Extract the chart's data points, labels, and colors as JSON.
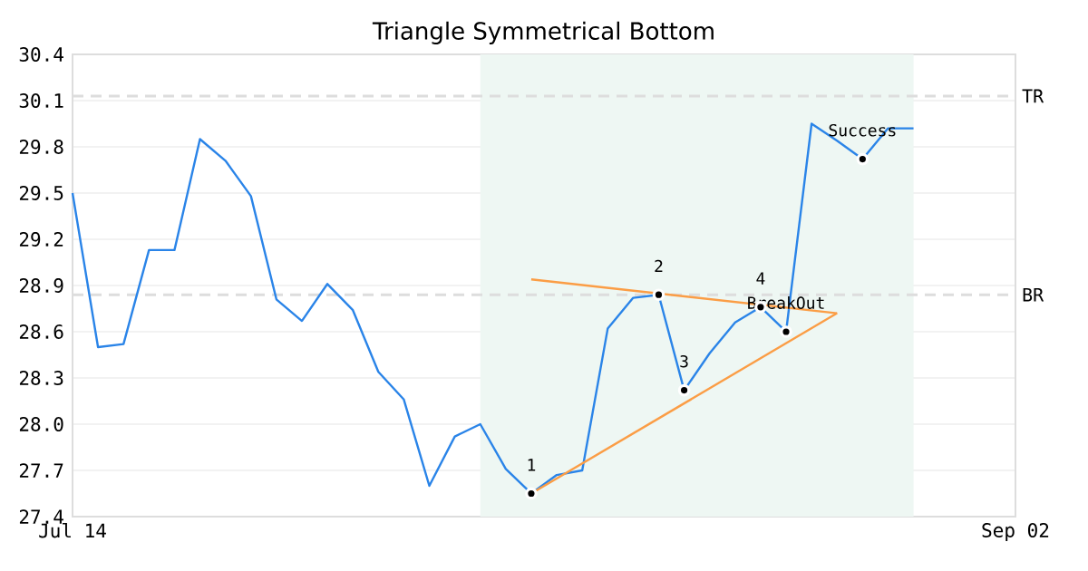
{
  "chart_data": {
    "type": "line",
    "title": "Triangle Symmetrical Bottom",
    "categories": [
      "Jul 14",
      null,
      null,
      null,
      null,
      null,
      null,
      null,
      null,
      null,
      null,
      null,
      null,
      null,
      null,
      null,
      null,
      null,
      null,
      null,
      null,
      null,
      null,
      null,
      null,
      null,
      null,
      null,
      null,
      null,
      null,
      null,
      null,
      null,
      null,
      null,
      null,
      "Sep 02"
    ],
    "ylim": [
      27.4,
      30.4
    ],
    "yticks": [
      27.4,
      27.7,
      {
        "value": 28.0,
        "label": "28.0"
      },
      28.3,
      28.6,
      28.9,
      29.2,
      29.5,
      29.8,
      30.1,
      30.4
    ],
    "grid": "y",
    "series": [
      {
        "color": "#2a84e8",
        "values": [
          29.5,
          28.5,
          28.52,
          29.13,
          29.13,
          29.85,
          29.71,
          29.48,
          28.81,
          28.67,
          28.91,
          28.74,
          28.34,
          28.16,
          27.6,
          27.92,
          28.0,
          27.71,
          27.55,
          27.67,
          27.7,
          28.62,
          28.82,
          28.84,
          28.22,
          28.46,
          28.66,
          28.76,
          28.6,
          29.95,
          29.84,
          29.72,
          29.92,
          29.92,
          null,
          null,
          null,
          null
        ]
      },
      {
        "color": "#fb9d45",
        "values": [
          null,
          null,
          null,
          null,
          null,
          null,
          null,
          null,
          null,
          null,
          null,
          null,
          null,
          null,
          null,
          null,
          null,
          null,
          28.94,
          null,
          null,
          null,
          null,
          null,
          null,
          null,
          null,
          null,
          null,
          null,
          28.72,
          null,
          null,
          null,
          null,
          null,
          null,
          null
        ]
      },
      {
        "color": "#fb9d45",
        "values": [
          null,
          null,
          null,
          null,
          null,
          null,
          null,
          null,
          null,
          null,
          null,
          null,
          null,
          null,
          null,
          null,
          null,
          null,
          27.55,
          null,
          null,
          null,
          null,
          null,
          null,
          null,
          null,
          null,
          null,
          null,
          28.72,
          null,
          null,
          null,
          null,
          null,
          null,
          null
        ]
      },
      {
        "type": "scatter",
        "color": "#000000",
        "marker": "circle",
        "values": [
          null,
          null,
          null,
          null,
          null,
          null,
          null,
          null,
          null,
          null,
          null,
          null,
          null,
          null,
          null,
          null,
          null,
          null,
          27.55,
          null,
          null,
          null,
          null,
          28.84,
          28.22,
          null,
          null,
          28.76,
          28.6,
          null,
          null,
          29.72,
          null,
          null,
          null,
          null,
          null,
          null
        ]
      }
    ],
    "ref_lines": [
      {
        "axis": "y",
        "value": 30.13,
        "label": "TR",
        "color": "#dddddd",
        "line_style": "dashed"
      },
      {
        "axis": "y",
        "value": 28.84,
        "label": "BR",
        "color": "#dddddd",
        "line_style": "dashed"
      }
    ],
    "annotations": [
      "1",
      "2",
      "3",
      "4",
      "BreakOut",
      "Success"
    ]
  }
}
